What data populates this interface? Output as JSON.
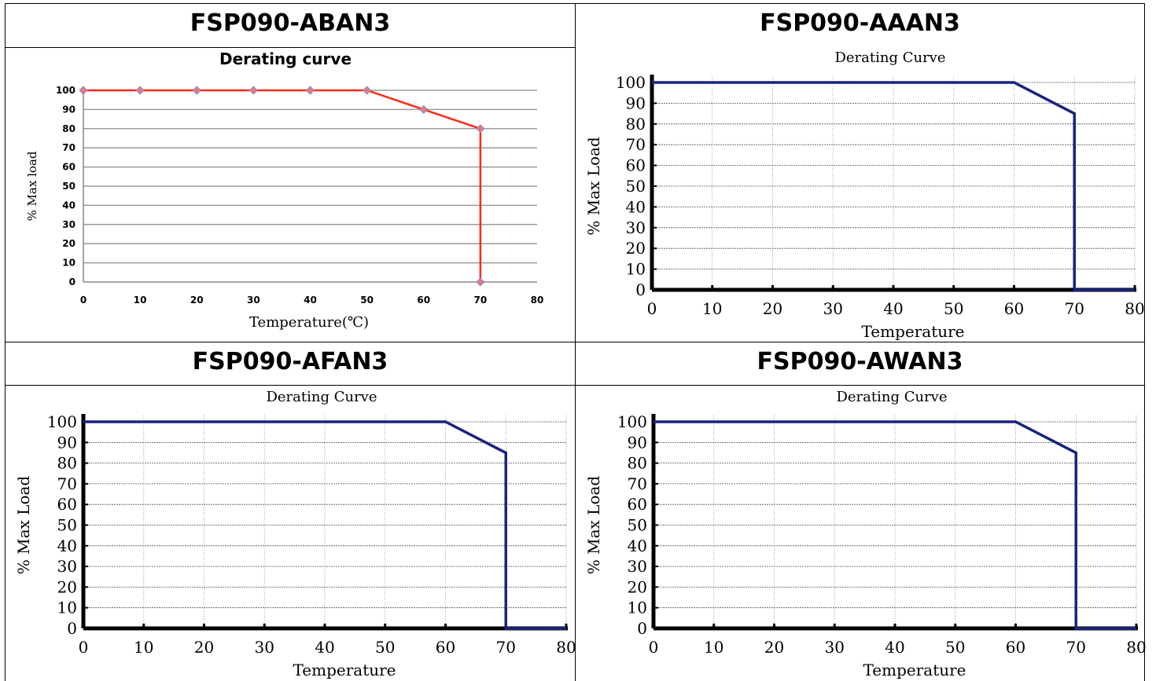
{
  "charts": [
    {
      "model": "FSP090-ABAN3",
      "chart_data": {
        "type": "line",
        "title": "Derating curve",
        "xlabel": "Temperature(℃)",
        "ylabel": "% Max load",
        "xlim": [
          0,
          80
        ],
        "ylim": [
          0,
          100
        ],
        "xticks": [
          "0",
          "10",
          "20",
          "30",
          "40",
          "50",
          "60",
          "70",
          "80"
        ],
        "yticks": [
          "0",
          "10",
          "20",
          "30",
          "40",
          "50",
          "60",
          "70",
          "80",
          "90",
          "100"
        ],
        "grid": "horizontal",
        "color": "#ff2a1a",
        "marker_color": "#e27a8c",
        "series": [
          {
            "x": [
              0,
              10,
              20,
              30,
              40,
              50,
              60,
              70,
              70
            ],
            "y": [
              100,
              100,
              100,
              100,
              100,
              100,
              90,
              80,
              0
            ]
          }
        ]
      }
    },
    {
      "model": "FSP090-AAAN3",
      "chart_data": {
        "type": "line",
        "title": "Derating Curve",
        "xlabel": "Temperature",
        "ylabel": "% Max Load",
        "xlim": [
          0,
          80
        ],
        "ylim": [
          0,
          100
        ],
        "xticks": [
          "0",
          "10",
          "20",
          "30",
          "40",
          "50",
          "60",
          "70",
          "80"
        ],
        "yticks": [
          "0",
          "10",
          "20",
          "30",
          "40",
          "50",
          "60",
          "70",
          "80",
          "90",
          "100"
        ],
        "grid": "both",
        "color": "#1a237e",
        "series": [
          {
            "x": [
              0,
              60,
              70,
              70,
              80
            ],
            "y": [
              100,
              100,
              85,
              0,
              0
            ]
          }
        ]
      }
    },
    {
      "model": "FSP090-AFAN3",
      "chart_data": {
        "type": "line",
        "title": "Derating Curve",
        "xlabel": "Temperature",
        "ylabel": "% Max Load",
        "xlim": [
          0,
          80
        ],
        "ylim": [
          0,
          100
        ],
        "xticks": [
          "0",
          "10",
          "20",
          "30",
          "40",
          "50",
          "60",
          "70",
          "80"
        ],
        "yticks": [
          "0",
          "10",
          "20",
          "30",
          "40",
          "50",
          "60",
          "70",
          "80",
          "90",
          "100"
        ],
        "grid": "both",
        "color": "#1a237e",
        "series": [
          {
            "x": [
              0,
              60,
              70,
              70,
              80
            ],
            "y": [
              100,
              100,
              85,
              0,
              0
            ]
          }
        ]
      }
    },
    {
      "model": "FSP090-AWAN3",
      "chart_data": {
        "type": "line",
        "title": "Derating Curve",
        "xlabel": "Temperature",
        "ylabel": "% Max Load",
        "xlim": [
          0,
          80
        ],
        "ylim": [
          0,
          100
        ],
        "xticks": [
          "0",
          "10",
          "20",
          "30",
          "40",
          "50",
          "60",
          "70",
          "80"
        ],
        "yticks": [
          "0",
          "10",
          "20",
          "30",
          "40",
          "50",
          "60",
          "70",
          "80",
          "90",
          "100"
        ],
        "grid": "both",
        "color": "#1a237e",
        "series": [
          {
            "x": [
              0,
              60,
              70,
              70,
              80
            ],
            "y": [
              100,
              100,
              85,
              0,
              0
            ]
          }
        ]
      }
    }
  ]
}
